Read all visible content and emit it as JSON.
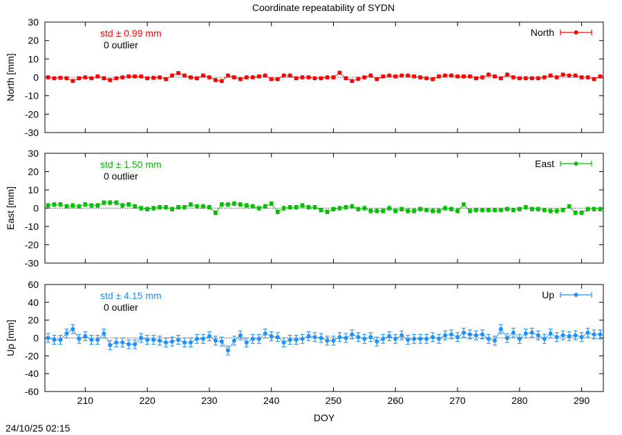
{
  "title": "Coordinate repeatability of SYDN",
  "timestamp": "24/10/25 02:15",
  "chart_data": [
    {
      "type": "scatter",
      "series_name": "North",
      "ylabel": "North [mm]",
      "xlabel": "",
      "color": "#ff0000",
      "ylim": [
        -30,
        30
      ],
      "yticks": [
        -30,
        -20,
        -10,
        0,
        10,
        20,
        30
      ],
      "xlim": [
        203.5,
        293.5
      ],
      "xticks": [
        210,
        220,
        230,
        240,
        250,
        260,
        270,
        280,
        290
      ],
      "show_xtick_labels": false,
      "std_label": "std ± 0.99 mm",
      "outlier_label": "0 outlier",
      "legend_position": "top-right",
      "error_bar": 0.8,
      "x": [
        204,
        205,
        206,
        207,
        208,
        209,
        210,
        211,
        212,
        213,
        214,
        215,
        216,
        217,
        218,
        219,
        220,
        221,
        222,
        223,
        224,
        225,
        226,
        227,
        228,
        229,
        230,
        231,
        232,
        233,
        234,
        235,
        236,
        237,
        238,
        239,
        240,
        241,
        242,
        243,
        244,
        245,
        246,
        247,
        248,
        249,
        250,
        251,
        252,
        253,
        254,
        255,
        256,
        257,
        258,
        259,
        260,
        261,
        262,
        263,
        264,
        265,
        266,
        267,
        268,
        269,
        270,
        271,
        272,
        273,
        274,
        275,
        276,
        277,
        278,
        279,
        280,
        281,
        282,
        283,
        284,
        285,
        286,
        287,
        288,
        289,
        290,
        291,
        292,
        293
      ],
      "y": [
        0.0,
        -0.5,
        -0.3,
        -0.5,
        -2.0,
        -0.5,
        0.0,
        -0.5,
        0.5,
        -0.5,
        -1.5,
        -0.5,
        0.0,
        0.5,
        0.5,
        0.5,
        -0.5,
        -0.3,
        0.0,
        -1.0,
        1.0,
        2.3,
        1.0,
        0.0,
        -0.5,
        1.0,
        0.0,
        -1.5,
        -2.0,
        1.0,
        0.0,
        -1.0,
        0.0,
        0.0,
        0.5,
        1.0,
        -1.0,
        -1.0,
        1.0,
        1.0,
        -0.5,
        0.0,
        0.0,
        -0.5,
        -0.5,
        0.0,
        0.0,
        2.5,
        -0.5,
        -2.0,
        -0.8,
        0.0,
        1.0,
        -1.0,
        0.5,
        1.0,
        0.5,
        1.0,
        1.0,
        0.5,
        0.0,
        -0.5,
        -1.0,
        0.5,
        1.0,
        1.0,
        0.5,
        0.5,
        0.5,
        -0.5,
        0.0,
        1.5,
        0.5,
        -0.5,
        1.5,
        0.0,
        -0.5,
        -0.5,
        -0.5,
        -0.5,
        0.0,
        1.0,
        0.0,
        1.5,
        1.0,
        1.0,
        0.0,
        0.0,
        -1.0,
        0.5
      ]
    },
    {
      "type": "scatter",
      "series_name": "East",
      "ylabel": "East [mm]",
      "xlabel": "",
      "color": "#00c000",
      "ylim": [
        -30,
        30
      ],
      "yticks": [
        -30,
        -20,
        -10,
        0,
        10,
        20,
        30
      ],
      "xlim": [
        203.5,
        293.5
      ],
      "xticks": [
        210,
        220,
        230,
        240,
        250,
        260,
        270,
        280,
        290
      ],
      "show_xtick_labels": false,
      "std_label": "std ± 1.50 mm",
      "outlier_label": "0 outlier",
      "legend_position": "top-right",
      "error_bar": 1.0,
      "x": [
        204,
        205,
        206,
        207,
        208,
        209,
        210,
        211,
        212,
        213,
        214,
        215,
        216,
        217,
        218,
        219,
        220,
        221,
        222,
        223,
        224,
        225,
        226,
        227,
        228,
        229,
        230,
        231,
        232,
        233,
        234,
        235,
        236,
        237,
        238,
        239,
        240,
        241,
        242,
        243,
        244,
        245,
        246,
        247,
        248,
        249,
        250,
        251,
        252,
        253,
        254,
        255,
        256,
        257,
        258,
        259,
        260,
        261,
        262,
        263,
        264,
        265,
        266,
        267,
        268,
        269,
        270,
        271,
        272,
        273,
        274,
        275,
        276,
        277,
        278,
        279,
        280,
        281,
        282,
        283,
        284,
        285,
        286,
        287,
        288,
        289,
        290,
        291,
        292,
        293
      ],
      "y": [
        1.5,
        2.0,
        2.0,
        1.0,
        1.5,
        1.0,
        2.0,
        1.5,
        1.5,
        3.0,
        3.0,
        3.0,
        1.5,
        2.0,
        1.0,
        0.0,
        -0.5,
        0.0,
        0.5,
        0.5,
        -0.5,
        0.5,
        0.5,
        2.0,
        1.0,
        1.0,
        0.5,
        -2.5,
        2.0,
        2.0,
        2.5,
        2.0,
        1.5,
        1.0,
        0.0,
        1.0,
        2.5,
        -2.0,
        0.0,
        0.5,
        0.5,
        1.5,
        0.5,
        0.5,
        -1.0,
        -2.0,
        -0.5,
        0.0,
        0.5,
        1.0,
        -0.5,
        0.0,
        -1.5,
        -1.5,
        -1.5,
        0.0,
        -1.5,
        -0.5,
        -1.5,
        -1.5,
        -0.5,
        -1.0,
        -1.5,
        -1.5,
        0.0,
        -0.5,
        -1.5,
        2.0,
        -1.5,
        -1.0,
        -1.0,
        -1.0,
        -1.0,
        -1.0,
        -0.5,
        -1.0,
        -0.5,
        0.5,
        -0.5,
        -0.5,
        -1.0,
        -1.5,
        -1.5,
        -1.0,
        1.0,
        -2.5,
        -2.5,
        -0.5,
        -0.5,
        -0.5
      ]
    },
    {
      "type": "scatter",
      "series_name": "Up",
      "ylabel": "Up [mm]",
      "xlabel": "DOY",
      "color": "#1e90ff",
      "ylim": [
        -60,
        60
      ],
      "yticks": [
        -60,
        -40,
        -20,
        0,
        20,
        40,
        60
      ],
      "xlim": [
        203.5,
        293.5
      ],
      "xticks": [
        210,
        220,
        230,
        240,
        250,
        260,
        270,
        280,
        290
      ],
      "show_xtick_labels": true,
      "std_label": "std ± 4.15 mm",
      "outlier_label": "0 outlier",
      "legend_position": "top-right",
      "error_bar": 5.0,
      "x": [
        204,
        205,
        206,
        207,
        208,
        209,
        210,
        211,
        212,
        213,
        214,
        215,
        216,
        217,
        218,
        219,
        220,
        221,
        222,
        223,
        224,
        225,
        226,
        227,
        228,
        229,
        230,
        231,
        232,
        233,
        234,
        235,
        236,
        237,
        238,
        239,
        240,
        241,
        242,
        243,
        244,
        245,
        246,
        247,
        248,
        249,
        250,
        251,
        252,
        253,
        254,
        255,
        256,
        257,
        258,
        259,
        260,
        261,
        262,
        263,
        264,
        265,
        266,
        267,
        268,
        269,
        270,
        271,
        272,
        273,
        274,
        275,
        276,
        277,
        278,
        279,
        280,
        281,
        282,
        283,
        284,
        285,
        286,
        287,
        288,
        289,
        290,
        291,
        292,
        293
      ],
      "y": [
        0,
        -2,
        -2,
        5,
        10,
        -1,
        2,
        -2,
        -2,
        5,
        -8,
        -5,
        -5,
        -7,
        -7,
        0,
        -2,
        -2,
        -3,
        -5,
        -4,
        -2,
        -5,
        -5,
        -1,
        -1,
        2,
        -3,
        -4,
        -14,
        -3,
        3,
        -5,
        -1,
        -1,
        5,
        2,
        1,
        -5,
        -2,
        -2,
        -1,
        2,
        1,
        0,
        -3,
        -3,
        1,
        0,
        4,
        1,
        -1,
        1,
        -4,
        -1,
        2,
        -1,
        3,
        -2,
        -1,
        -1,
        -1,
        1,
        -1,
        3,
        4,
        1,
        6,
        4,
        3,
        4,
        -1,
        -3,
        10,
        0,
        6,
        -1,
        5,
        6,
        3,
        -1,
        5,
        1,
        3,
        2,
        3,
        1,
        6,
        4,
        4
      ]
    }
  ]
}
